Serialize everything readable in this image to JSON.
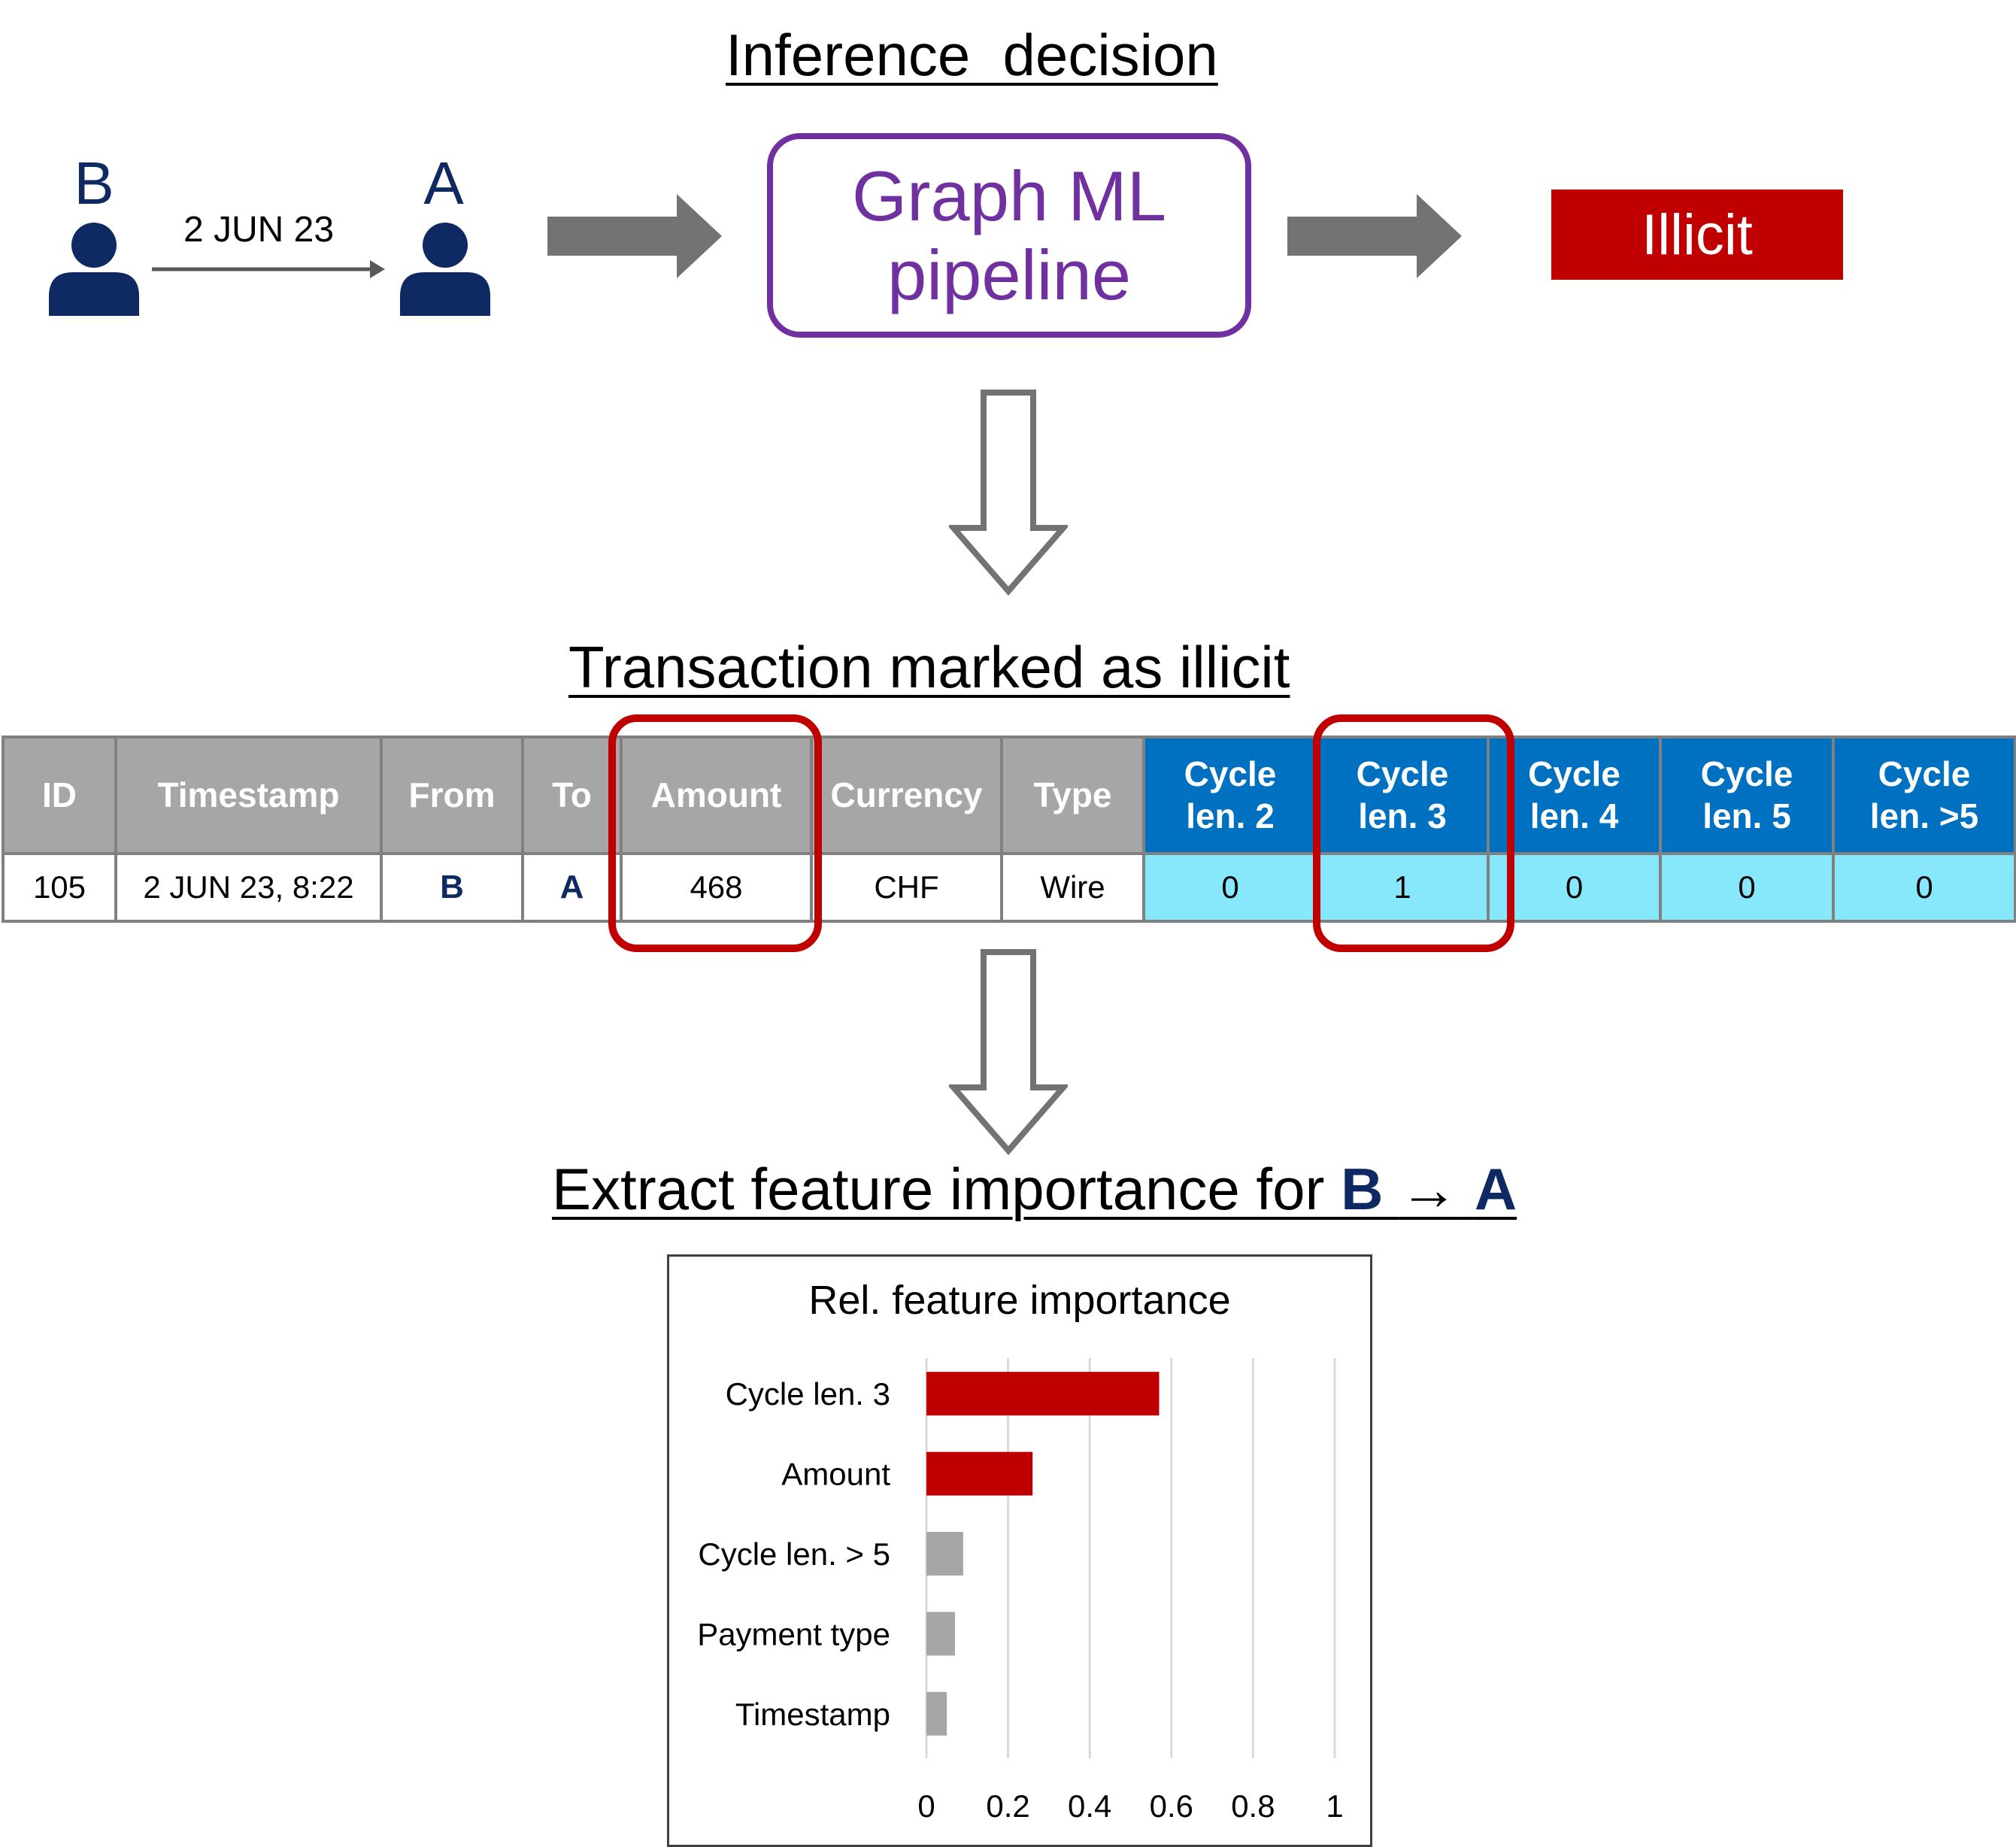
{
  "inference": {
    "title": "Inference  decision",
    "node_b": "B",
    "node_a": "A",
    "edge_label": "2 JUN 23",
    "pipeline_line1": "Graph ML",
    "pipeline_line2": "pipeline",
    "result": "Illicit",
    "colors": {
      "node": "#0f2a63",
      "pipeline": "#7030a0",
      "illicit": "#c00000",
      "arrow": "#737373"
    }
  },
  "transaction": {
    "title": "Transaction marked as illicit",
    "headers": [
      {
        "line1": "ID",
        "line2": ""
      },
      {
        "line1": "Timestamp",
        "line2": ""
      },
      {
        "line1": "From",
        "line2": ""
      },
      {
        "line1": "To",
        "line2": ""
      },
      {
        "line1": "Amount",
        "line2": ""
      },
      {
        "line1": "Currency",
        "line2": ""
      },
      {
        "line1": "Type",
        "line2": ""
      },
      {
        "line1": "Cycle",
        "line2": "len. 2"
      },
      {
        "line1": "Cycle",
        "line2": "len. 3"
      },
      {
        "line1": "Cycle",
        "line2": "len. 4"
      },
      {
        "line1": "Cycle",
        "line2": "len. 5"
      },
      {
        "line1": "Cycle",
        "line2": "len. >5"
      }
    ],
    "row": [
      "105",
      "2 JUN 23, 8:22",
      "B",
      "A",
      "468",
      "CHF",
      "Wire",
      "0",
      "1",
      "0",
      "0",
      "0"
    ],
    "highlighted_columns": [
      "Amount",
      "Cycle len. 3"
    ]
  },
  "extract": {
    "title_prefix": "Extract feature importance for ",
    "from": "B",
    "arrow": "→",
    "to": "A"
  },
  "chart_data": {
    "type": "bar",
    "orientation": "horizontal",
    "title": "Rel. feature importance",
    "categories": [
      "Cycle len. 3",
      "Amount",
      "Cycle len. > 5",
      "Payment type",
      "Timestamp"
    ],
    "values": [
      0.57,
      0.26,
      0.09,
      0.07,
      0.05
    ],
    "colors": [
      "#c00000",
      "#c00000",
      "#a6a6a6",
      "#a6a6a6",
      "#a6a6a6"
    ],
    "xlim": [
      0,
      1
    ],
    "xticks": [
      "0",
      "0.2",
      "0.4",
      "0.6",
      "0.8",
      "1"
    ],
    "xtick_values": [
      0,
      0.2,
      0.4,
      0.6,
      0.8,
      1
    ],
    "xlabel": "",
    "ylabel": "",
    "grid": "vertical",
    "legend": "none"
  }
}
